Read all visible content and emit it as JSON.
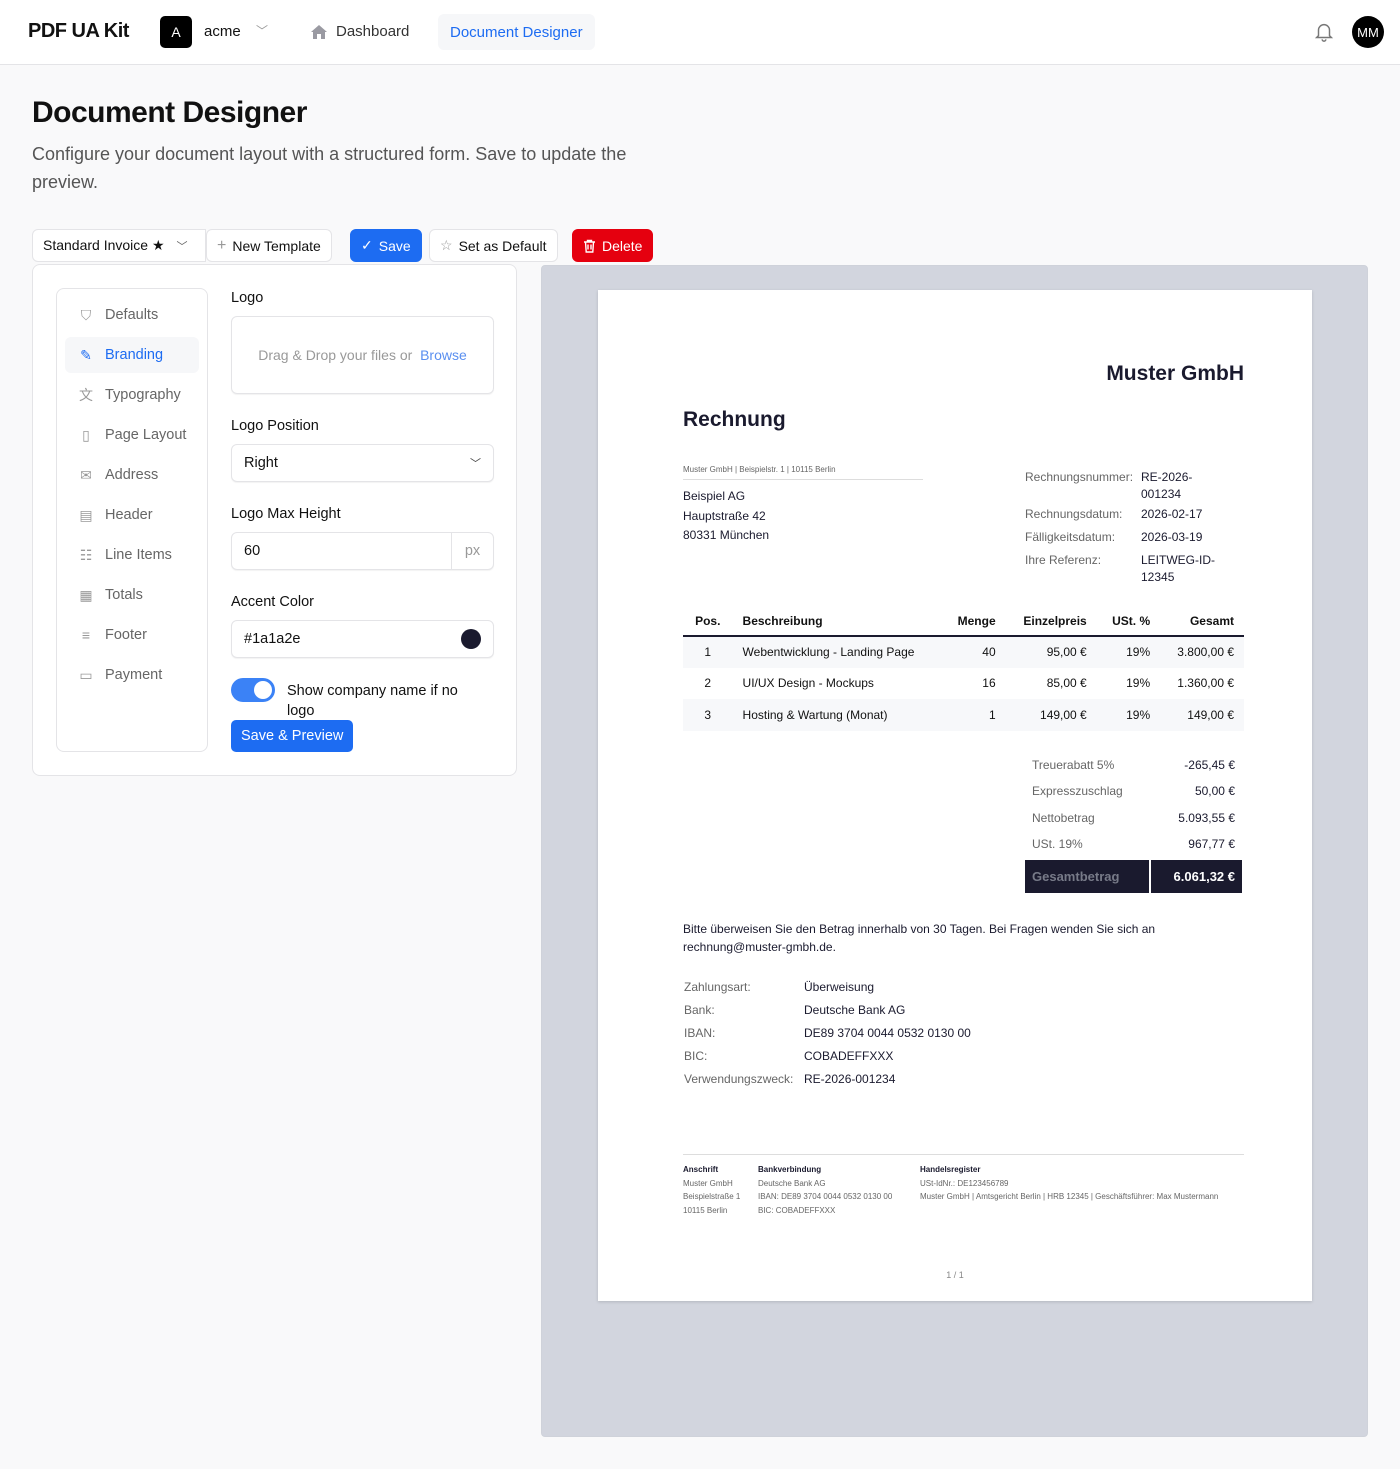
{
  "header": {
    "brand": "PDF UA Kit",
    "org_initial": "A",
    "org_name": "acme",
    "nav": [
      {
        "label": "Dashboard",
        "icon": "home-icon"
      },
      {
        "label": "Document Designer",
        "active": true
      }
    ],
    "user_initials": "MM"
  },
  "page": {
    "title": "Document Designer",
    "subtitle": "Configure your document layout with a structured form. Save to update the preview."
  },
  "toolbar": {
    "template": "Standard Invoice ★",
    "new_template": "New Template",
    "save": "Save",
    "set_default": "Set as Default",
    "delete": "Delete"
  },
  "sidebar": {
    "items": [
      {
        "label": "Defaults",
        "icon": "shield-check-icon"
      },
      {
        "label": "Branding",
        "icon": "brush-icon",
        "active": true
      },
      {
        "label": "Typography",
        "icon": "translate-icon"
      },
      {
        "label": "Page Layout",
        "icon": "file-icon"
      },
      {
        "label": "Address",
        "icon": "envelope-icon"
      },
      {
        "label": "Header",
        "icon": "file-text-icon"
      },
      {
        "label": "Line Items",
        "icon": "table-icon"
      },
      {
        "label": "Totals",
        "icon": "calculator-icon"
      },
      {
        "label": "Footer",
        "icon": "lines-icon"
      },
      {
        "label": "Payment",
        "icon": "banknote-icon"
      }
    ]
  },
  "form": {
    "logo_label": "Logo",
    "drop_text": "Drag & Drop your files or ",
    "browse": "Browse",
    "logo_position_label": "Logo Position",
    "logo_position": "Right",
    "max_height_label": "Logo Max Height",
    "max_height": "60",
    "unit": "px",
    "accent_label": "Accent Color",
    "accent": "#1a1a2e",
    "toggle_label": "Show company name if no logo",
    "toggle_on": true,
    "save_preview": "Save & Preview"
  },
  "colors": {
    "primary": "#1d6cf2",
    "danger": "#e5000f",
    "accent": "#1a1a2e"
  },
  "invoice": {
    "company": "Muster GmbH",
    "title": "Rechnung",
    "sender_line": "Muster GmbH | Beispielstr. 1 | 10115 Berlin",
    "recipient": [
      "Beispiel AG",
      "Hauptstraße 42",
      "80331 München"
    ],
    "meta": [
      {
        "k": "Rechnungsnummer:",
        "v": "RE-2026-001234"
      },
      {
        "k": "Rechnungsdatum:",
        "v": "2026-02-17"
      },
      {
        "k": "Fälligkeitsdatum:",
        "v": "2026-03-19"
      },
      {
        "k": "Ihre Referenz:",
        "v": "LEITWEG-ID-12345"
      }
    ],
    "columns": [
      "Pos.",
      "Beschreibung",
      "Menge",
      "Einzelpreis",
      "USt. %",
      "Gesamt"
    ],
    "rows": [
      [
        "1",
        "Webentwicklung - Landing Page",
        "40",
        "95,00 €",
        "19%",
        "3.800,00 €"
      ],
      [
        "2",
        "UI/UX Design - Mockups",
        "16",
        "85,00 €",
        "19%",
        "1.360,00 €"
      ],
      [
        "3",
        "Hosting & Wartung (Monat)",
        "1",
        "149,00 €",
        "19%",
        "149,00 €"
      ]
    ],
    "totals": [
      {
        "k": "Treuerabatt 5%",
        "v": "-265,45 €"
      },
      {
        "k": "Expresszuschlag",
        "v": "50,00 €"
      },
      {
        "k": "Nettobetrag",
        "v": "5.093,55 €"
      },
      {
        "k": "USt. 19%",
        "v": "967,77 €"
      }
    ],
    "grand_label": "Gesamtbetrag",
    "grand_value": "6.061,32 €",
    "note": "Bitte überweisen Sie den Betrag innerhalb von 30 Tagen. Bei Fragen wenden Sie sich an rechnung@muster-gmbh.de.",
    "payment": [
      {
        "k": "Zahlungsart:",
        "v": "Überweisung"
      },
      {
        "k": "Bank:",
        "v": "Deutsche Bank AG"
      },
      {
        "k": "IBAN:",
        "v": "DE89 3704 0044 0532 0130 00"
      },
      {
        "k": "BIC:",
        "v": "COBADEFFXXX"
      },
      {
        "k": "Verwendungszweck:",
        "v": "RE-2026-001234"
      }
    ],
    "footer": [
      {
        "title": "Anschrift",
        "lines": [
          "Muster GmbH",
          "Beispielstraße 1",
          "10115 Berlin"
        ]
      },
      {
        "title": "Bankverbindung",
        "lines": [
          "Deutsche Bank AG",
          "IBAN: DE89 3704 0044 0532 0130 00",
          "BIC: COBADEFFXXX"
        ]
      },
      {
        "title": "Handelsregister",
        "lines": [
          "USt-IdNr.: DE123456789",
          "Muster GmbH | Amtsgericht Berlin | HRB 12345 | Geschäftsführer: Max Mustermann"
        ]
      }
    ],
    "page_number": "1 / 1"
  }
}
